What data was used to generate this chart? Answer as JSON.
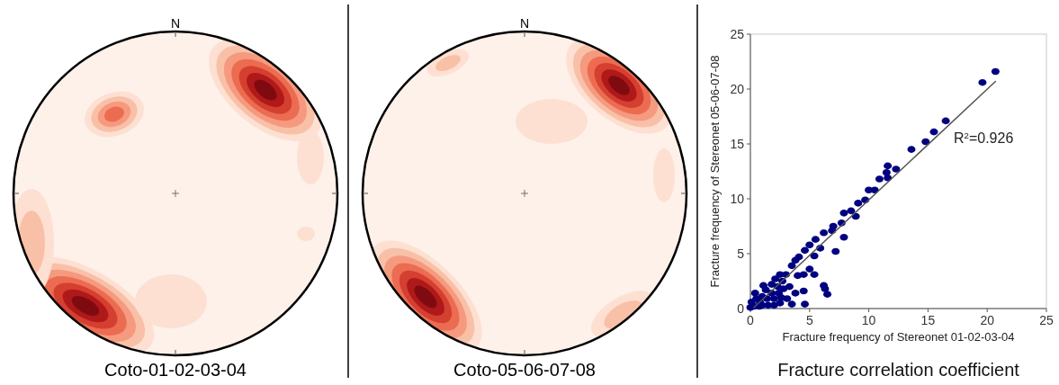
{
  "chart_data": [
    {
      "type": "other",
      "title": "Coto-01-02-03-04",
      "annotations": [
        "N"
      ]
    },
    {
      "type": "other",
      "title": "Coto-05-06-07-08",
      "annotations": [
        "N"
      ]
    },
    {
      "type": "scatter",
      "title": "Fracture correlation coefficient",
      "xlabel": "Fracture frequency of Stereonet 01-02-03-04",
      "ylabel": "Fracture frequency of Stereonet 05-06-07-08",
      "xlim": [
        0,
        25
      ],
      "ylim": [
        0,
        25
      ],
      "xticks": [
        0,
        5,
        10,
        15,
        20,
        25
      ],
      "yticks": [
        0,
        5,
        10,
        15,
        20,
        25
      ],
      "grid": false,
      "annotations": [
        "R$^{2}$=0.926"
      ],
      "series": [
        {
          "type": "scatter",
          "color": "#000080",
          "marker": "circle",
          "x": [
            20.7,
            19.6,
            16.5,
            15.5,
            14.8,
            13.6,
            12.3,
            11.6,
            11.5,
            10.9,
            11.6,
            10.0,
            10.5,
            9.7,
            9.1,
            8.5,
            7.9,
            8.9,
            7.7,
            7.0,
            6.9,
            7.9,
            7.2,
            6.2,
            5.5,
            5.0,
            5.9,
            5.4,
            4.6,
            4.1,
            3.8,
            3.5,
            5.0,
            4.5,
            5.4,
            4.0,
            6.2,
            6.5,
            6.3,
            4.5,
            4.6,
            3.8,
            3.1,
            3.5,
            2.6,
            2.3,
            2.7,
            3.0,
            0.3,
            0.8,
            1.0,
            1.3,
            1.8,
            2.1,
            2.5,
            0.5,
            1.5,
            2.0,
            2.5,
            1.0,
            0.4,
            1.1,
            1.8,
            2.4,
            2.8,
            3.3,
            1.4,
            2.0,
            0.0,
            0.1,
            0.75
          ],
          "values": [
            21.6,
            20.6,
            17.1,
            16.1,
            15.2,
            14.5,
            12.7,
            13.0,
            12.4,
            11.8,
            11.9,
            10.8,
            10.8,
            9.9,
            9.6,
            8.9,
            8.7,
            8.4,
            7.8,
            7.5,
            7.1,
            6.5,
            5.2,
            6.9,
            6.3,
            5.8,
            5.5,
            4.8,
            5.3,
            4.7,
            4.4,
            3.9,
            3.6,
            3.1,
            3.1,
            3.0,
            2.1,
            1.3,
            1.8,
            1.6,
            0.4,
            1.4,
            0.9,
            0.4,
            1.0,
            2.0,
            2.5,
            3.1,
            0.2,
            0.6,
            1.1,
            1.7,
            2.2,
            2.7,
            3.1,
            0.9,
            0.3,
            0.3,
            0.5,
            0.3,
            1.4,
            2.1,
            1.4,
            1.4,
            1.8,
            2.0,
            0.9,
            0.9,
            0.1,
            0.6,
            0.2
          ]
        },
        {
          "type": "line",
          "color": "#555555",
          "marker": "none",
          "x": [
            0.3,
            20.7
          ],
          "values": [
            0.1,
            20.7
          ]
        }
      ]
    }
  ]
}
